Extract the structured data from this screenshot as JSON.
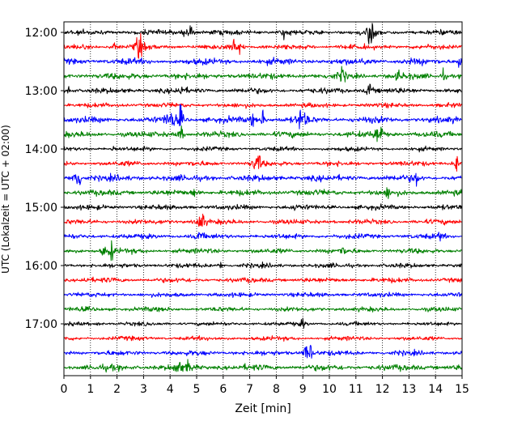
{
  "chart_data": {
    "type": "line",
    "title": "",
    "xlabel": "Zeit  [min]",
    "ylabel": "UTC (Lokalzeit = UTC + 02:00)",
    "xlim": [
      0,
      15
    ],
    "x_ticks": [
      "0",
      "1",
      "2",
      "3",
      "4",
      "5",
      "6",
      "7",
      "8",
      "9",
      "10",
      "11",
      "12",
      "13",
      "14",
      "15"
    ],
    "y_ticks": [
      "12:00",
      "13:00",
      "14:00",
      "15:00",
      "16:00",
      "17:00"
    ],
    "grid": "vertical dotted lines at each minute",
    "colors": [
      "#000000",
      "#ff0000",
      "#0000ff",
      "#008000"
    ],
    "series": [
      {
        "start": "12:00",
        "color": "#000000",
        "noise": 2.6,
        "events": [
          [
            4.5,
            8
          ],
          [
            4.75,
            9
          ],
          [
            8.3,
            5
          ],
          [
            11.5,
            13
          ],
          [
            11.6,
            8
          ]
        ]
      },
      {
        "start": "12:15",
        "color": "#ff0000",
        "noise": 2.6,
        "events": [
          [
            1.9,
            4
          ],
          [
            2.8,
            11
          ],
          [
            2.9,
            6
          ],
          [
            6.4,
            9
          ],
          [
            6.6,
            8
          ]
        ]
      },
      {
        "start": "12:30",
        "color": "#0000ff",
        "noise": 3.2,
        "events": [
          [
            11.3,
            4
          ],
          [
            14.9,
            7
          ]
        ]
      },
      {
        "start": "12:45",
        "color": "#008000",
        "noise": 3.2,
        "events": [
          [
            10.5,
            9
          ],
          [
            12.6,
            4
          ],
          [
            14.3,
            6
          ]
        ]
      },
      {
        "start": "13:00",
        "color": "#000000",
        "noise": 2.8,
        "events": [
          [
            0.2,
            5
          ],
          [
            4.4,
            5
          ],
          [
            11.5,
            10
          ]
        ]
      },
      {
        "start": "13:15",
        "color": "#ff0000",
        "noise": 2.4,
        "events": []
      },
      {
        "start": "13:30",
        "color": "#0000ff",
        "noise": 3.2,
        "events": [
          [
            3.9,
            8
          ],
          [
            4.1,
            9
          ],
          [
            4.4,
            13
          ],
          [
            7.1,
            6
          ],
          [
            7.5,
            8
          ],
          [
            8.9,
            11
          ],
          [
            9.1,
            6
          ]
        ]
      },
      {
        "start": "13:45",
        "color": "#008000",
        "noise": 3.0,
        "events": [
          [
            4.4,
            9
          ],
          [
            11.8,
            10
          ],
          [
            11.95,
            7
          ]
        ]
      },
      {
        "start": "14:00",
        "color": "#000000",
        "noise": 2.2,
        "events": [
          [
            1.9,
            3
          ]
        ]
      },
      {
        "start": "14:15",
        "color": "#ff0000",
        "noise": 2.6,
        "events": [
          [
            7.2,
            9
          ],
          [
            7.35,
            7
          ],
          [
            14.8,
            8
          ]
        ]
      },
      {
        "start": "14:30",
        "color": "#0000ff",
        "noise": 3.2,
        "events": [
          [
            0.45,
            17
          ],
          [
            0.6,
            6
          ],
          [
            13.25,
            8
          ]
        ]
      },
      {
        "start": "14:45",
        "color": "#008000",
        "noise": 3.0,
        "events": [
          [
            4.9,
            4
          ],
          [
            12.2,
            5
          ]
        ]
      },
      {
        "start": "15:00",
        "color": "#000000",
        "noise": 2.6,
        "events": [
          [
            8.7,
            3
          ]
        ]
      },
      {
        "start": "15:15",
        "color": "#ff0000",
        "noise": 2.6,
        "events": [
          [
            5.1,
            10
          ],
          [
            5.25,
            6
          ]
        ]
      },
      {
        "start": "15:30",
        "color": "#0000ff",
        "noise": 2.6,
        "events": [
          [
            5.1,
            5
          ],
          [
            14.2,
            5
          ]
        ]
      },
      {
        "start": "15:45",
        "color": "#008000",
        "noise": 2.6,
        "events": [
          [
            1.5,
            6
          ],
          [
            1.8,
            9
          ],
          [
            10.5,
            4
          ]
        ]
      },
      {
        "start": "16:00",
        "color": "#000000",
        "noise": 2.4,
        "events": [
          [
            5.9,
            3
          ]
        ]
      },
      {
        "start": "16:15",
        "color": "#ff0000",
        "noise": 2.6,
        "events": [
          [
            0.8,
            3
          ]
        ]
      },
      {
        "start": "16:30",
        "color": "#0000ff",
        "noise": 2.4,
        "events": []
      },
      {
        "start": "16:45",
        "color": "#008000",
        "noise": 2.4,
        "events": []
      },
      {
        "start": "17:00",
        "color": "#000000",
        "noise": 2.0,
        "events": [
          [
            1.3,
            3
          ],
          [
            9.0,
            5
          ]
        ]
      },
      {
        "start": "17:15",
        "color": "#ff0000",
        "noise": 2.2,
        "events": []
      },
      {
        "start": "17:30",
        "color": "#0000ff",
        "noise": 2.6,
        "events": [
          [
            9.1,
            9
          ],
          [
            9.3,
            8
          ]
        ]
      },
      {
        "start": "17:45",
        "color": "#008000",
        "noise": 3.2,
        "events": [
          [
            4.3,
            11
          ],
          [
            4.7,
            6
          ]
        ]
      }
    ]
  }
}
